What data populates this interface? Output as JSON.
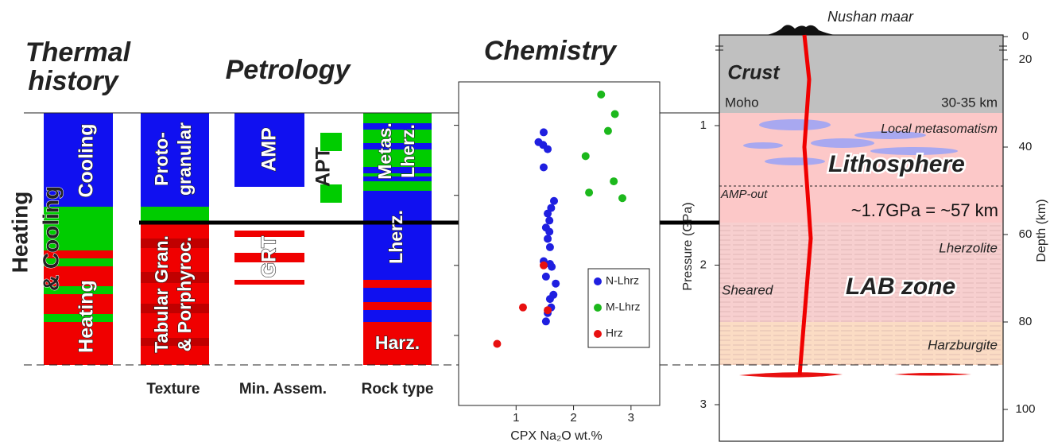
{
  "thermal_history": {
    "title": [
      "Thermal",
      "history"
    ],
    "side_label": [
      "Heating",
      "& Cooling"
    ],
    "upper": "Cooling",
    "lower": "Heating"
  },
  "petrology": {
    "title": "Petrology",
    "texture": {
      "label": "Texture",
      "upper": [
        "Proto-",
        "granular"
      ],
      "lower": [
        "Tabular Gran.",
        "& Porphyroc."
      ]
    },
    "mineral_assemblage": {
      "label": "Min. Assem.",
      "phases": [
        "AMP",
        "APT",
        "GRT"
      ]
    },
    "rock_type": {
      "label": "Rock type",
      "upper": [
        "Metas.",
        "Lherz."
      ],
      "middle": "Lherz.",
      "lower": "Harz."
    }
  },
  "chart_data": {
    "type": "scatter",
    "title": "Chemistry",
    "x_label": "CPX Na₂O wt.%",
    "xlim": [
      0,
      3.5
    ],
    "xticks": [
      1,
      2,
      3
    ],
    "ylim": [
      3,
      0.69
    ],
    "yticks": [
      1,
      1.5,
      2,
      2.5
    ],
    "series": [
      {
        "name": "N-Lhrz",
        "color": "#1f1fe0",
        "x": [
          1.48,
          1.39,
          1.47,
          1.55,
          1.48,
          1.66,
          1.61,
          1.55,
          1.58,
          1.52,
          1.58,
          1.55,
          1.59,
          1.48,
          1.59,
          1.62,
          1.52,
          1.69,
          1.65,
          1.59,
          1.61,
          1.55,
          1.52
        ],
        "values": [
          1.05,
          1.12,
          1.14,
          1.17,
          1.3,
          1.54,
          1.59,
          1.63,
          1.68,
          1.73,
          1.76,
          1.81,
          1.87,
          1.97,
          1.99,
          2.01,
          2.08,
          2.13,
          2.21,
          2.24,
          2.3,
          2.34,
          2.4
        ]
      },
      {
        "name": "M-Lhrz",
        "color": "#1cb81c",
        "x": [
          2.48,
          2.72,
          2.6,
          2.21,
          2.7,
          2.27,
          2.85
        ],
        "values": [
          0.78,
          0.92,
          1.04,
          1.22,
          1.4,
          1.48,
          1.52
        ]
      },
      {
        "name": "Hrz",
        "color": "#e81010",
        "x": [
          1.48,
          1.12,
          1.55,
          0.67
        ],
        "values": [
          2.0,
          2.3,
          2.32,
          2.56
        ]
      }
    ]
  },
  "section": {
    "volcano": "Nushan maar",
    "crust": "Crust",
    "moho": "Moho",
    "moho_depth": "30-35 km",
    "metasomatism": "Local metasomatism",
    "lithosphere": "Lithosphere",
    "amp_out": "AMP-out",
    "lab_depth": "~1.7GPa = ~57 km",
    "lherzolite": "Lherzolite",
    "sheared": "Sheared",
    "lab_zone": "LAB zone",
    "harzburgite": "Harzburgite",
    "pressure_label": "Pressure (GPa)",
    "depth_label": "Depth (km)",
    "pressure_ticks": [
      1,
      2,
      3
    ],
    "depth_ticks": [
      0,
      20,
      40,
      60,
      80,
      100
    ]
  }
}
